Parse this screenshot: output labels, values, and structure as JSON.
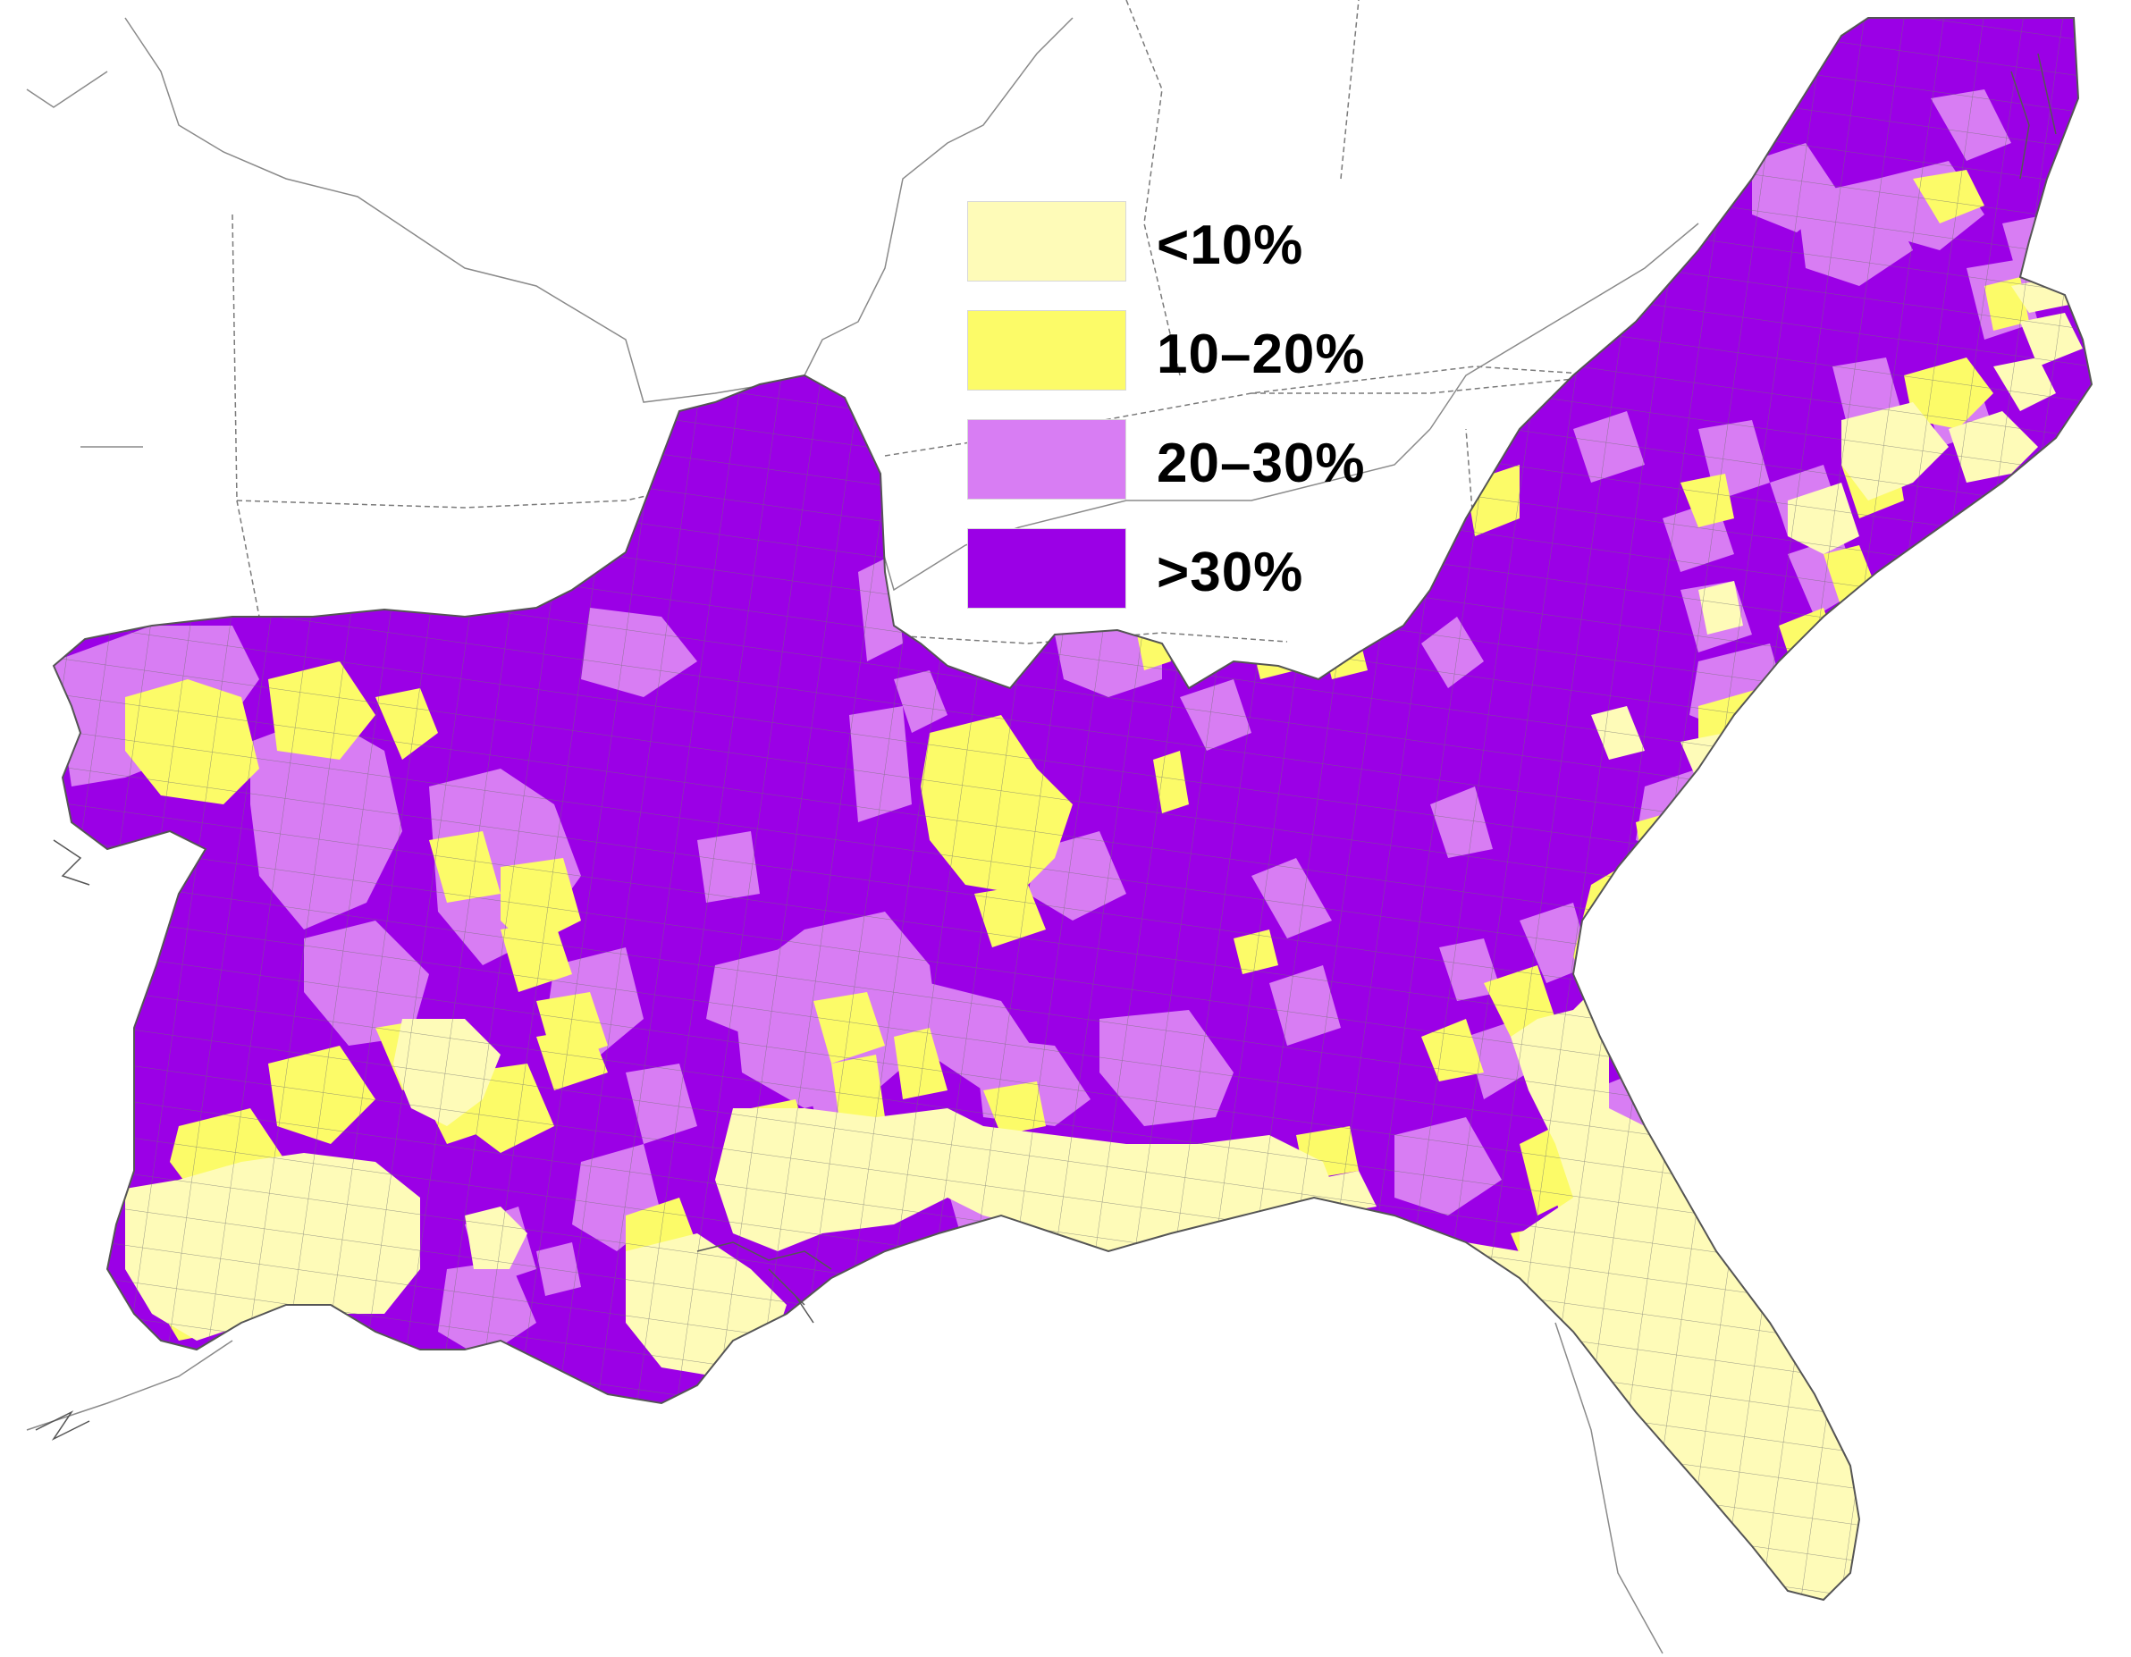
{
  "map": {
    "colors": {
      "lt10": "#fefbb8",
      "p10_20": "#fcfb68",
      "p20_30": "#d87df3",
      "gt30": "#9b00e6",
      "county_line": "#6f6f6f",
      "state_line": "#7a7a7a",
      "coast": "#555555",
      "background": "#ffffff"
    }
  },
  "legend": {
    "items": [
      {
        "label": "<10%",
        "color": "#fefbb8"
      },
      {
        "label": "10–20%",
        "color": "#fcfb68"
      },
      {
        "label": "20–30%",
        "color": "#d87df3"
      },
      {
        "label": ">30%",
        "color": "#9b00e6"
      }
    ]
  }
}
